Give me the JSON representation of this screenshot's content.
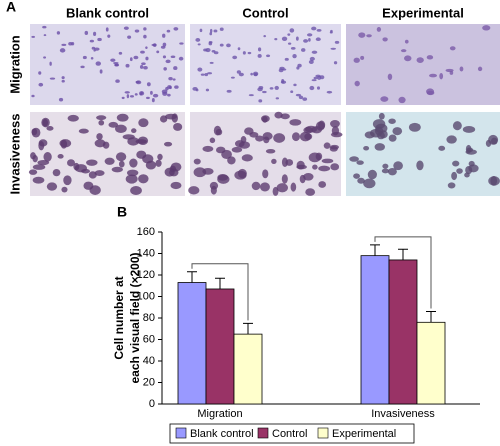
{
  "panel_a": {
    "label": "A",
    "columns": [
      "Blank control",
      "Control",
      "Experimental"
    ],
    "rows": [
      "Migration",
      "Invasiveness"
    ]
  },
  "chart_data": {
    "type": "bar",
    "label": "B",
    "y_label": [
      "Cell number at",
      "each visual field (×200)"
    ],
    "categories": [
      "Migration",
      "Invasiveness"
    ],
    "series": [
      {
        "name": "Blank control",
        "color": "#9999ff",
        "values": [
          113,
          138
        ],
        "errors": [
          10,
          10
        ]
      },
      {
        "name": "Control",
        "color": "#993366",
        "values": [
          107,
          134
        ],
        "errors": [
          10,
          10
        ]
      },
      {
        "name": "Experimental",
        "color": "#ffffcc",
        "values": [
          65,
          76
        ],
        "errors": [
          10,
          10
        ]
      }
    ],
    "ylim": [
      0,
      160
    ],
    "yticks": [
      0,
      20,
      40,
      60,
      80,
      100,
      120,
      140,
      160
    ],
    "legend": "bottom"
  }
}
